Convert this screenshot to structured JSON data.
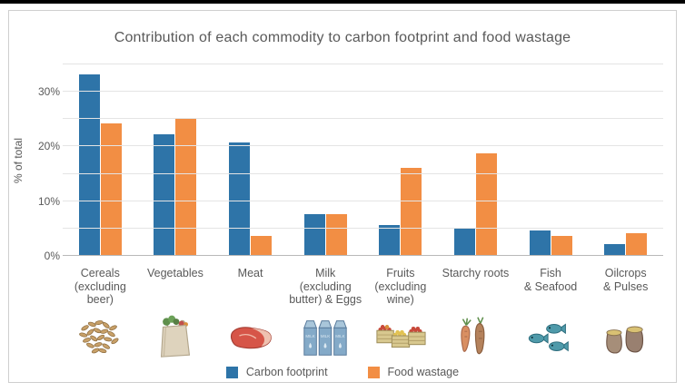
{
  "chart_data": {
    "type": "bar",
    "title": "Contribution of each commodity to carbon footprint and food wastage",
    "ylabel": "% of total",
    "ylim": [
      0,
      35
    ],
    "ytick_step": 5,
    "ytick_label_step": 10,
    "ytick_labels": [
      "0%",
      "10%",
      "20%",
      "30%"
    ],
    "grid": true,
    "legend_position": "bottom",
    "categories": [
      "Cereals (excluding beer)",
      "Vegetables",
      "Meat",
      "Milk (excluding butter) & Eggs",
      "Fruits (excluding wine)",
      "Starchy roots",
      "Fish & Seafood",
      "Oilcrops & Pulses"
    ],
    "category_label_lines": [
      [
        "Cereals",
        "(excluding beer)"
      ],
      [
        "Vegetables"
      ],
      [
        "Meat"
      ],
      [
        "Milk",
        "(excluding",
        "butter) & Eggs"
      ],
      [
        "Fruits",
        "(excluding wine)"
      ],
      [
        "Starchy roots"
      ],
      [
        "Fish",
        "& Seafood"
      ],
      [
        "Oilcrops",
        "& Pulses"
      ]
    ],
    "category_icons": [
      "cereals-icon",
      "vegetables-icon",
      "meat-icon",
      "milk-eggs-icon",
      "fruits-icon",
      "starchy-roots-icon",
      "fish-seafood-icon",
      "oilcrops-pulses-icon"
    ],
    "series": [
      {
        "name": "Carbon footprint",
        "color": "#2e74a8",
        "values": [
          33,
          22,
          20.5,
          7.5,
          5.5,
          5,
          4.5,
          2
        ]
      },
      {
        "name": "Food wastage",
        "color": "#f28e44",
        "values": [
          24,
          25,
          3.5,
          7.5,
          16,
          18.5,
          3.5,
          4
        ]
      }
    ]
  },
  "colors": {
    "carbon_footprint": "#2e74a8",
    "food_wastage": "#f28e44",
    "text": "#595959",
    "gridline": "#e4e4e4",
    "border": "#cfcfcf",
    "top_bar": "#000000"
  }
}
